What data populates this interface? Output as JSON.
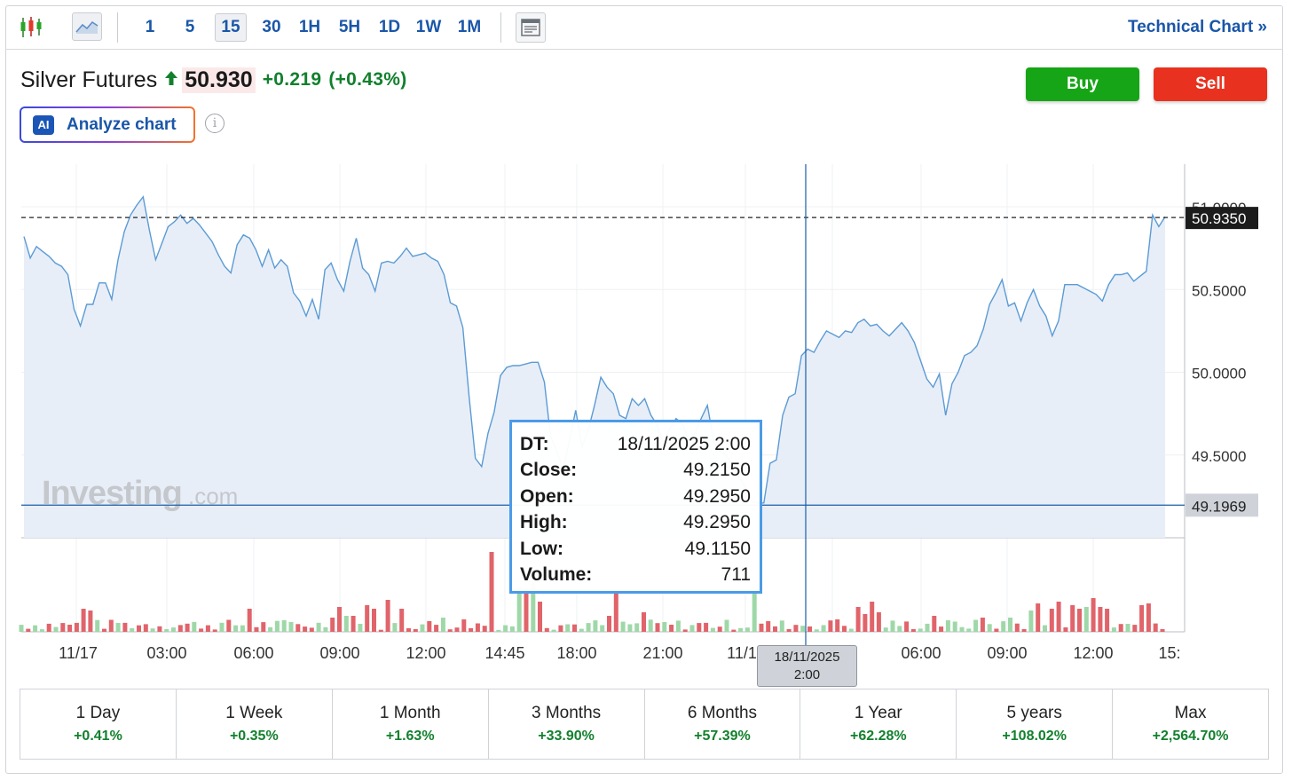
{
  "toolbar": {
    "timeframes": [
      "1",
      "5",
      "15",
      "30",
      "1H",
      "5H",
      "1D",
      "1W",
      "1M"
    ],
    "active_timeframe": "15",
    "technical_link": "Technical Chart »"
  },
  "header": {
    "instrument": "Silver Futures",
    "price": "50.930",
    "change": "+0.219",
    "change_pct": "(+0.43%)",
    "buy_label": "Buy",
    "sell_label": "Sell",
    "analyze_label": "Analyze chart",
    "ai_badge": "AI",
    "info_glyph": "i"
  },
  "chart": {
    "watermark_main": "Investing",
    "watermark_dot": ".com",
    "last_price_label": "50.9350",
    "cursor_price_label": "49.1969",
    "y_ticks": [
      "50.5000",
      "50.0000",
      "49.5000"
    ],
    "top_tick_partial": "51.0000",
    "x_ticks": [
      "11/17",
      "03:00",
      "06:00",
      "09:00",
      "12:00",
      "14:45",
      "18:00",
      "21:00",
      "11/1",
      "06:00",
      "09:00",
      "12:00",
      "15:"
    ],
    "cursor_date": "18/11/2025",
    "cursor_time": "2:00",
    "colors": {
      "line": "#5b9bd5",
      "area": "#e8eef7",
      "up_volume": "#9fd8a8",
      "down_volume": "#e0646a",
      "crosshair": "#1a5ea8"
    }
  },
  "tooltip": {
    "rows": [
      {
        "key": "DT:",
        "value": "18/11/2025 2:00"
      },
      {
        "key": "Close:",
        "value": "49.2150"
      },
      {
        "key": "Open:",
        "value": "49.2950"
      },
      {
        "key": "High:",
        "value": "49.2950"
      },
      {
        "key": "Low:",
        "value": "49.1150"
      },
      {
        "key": "Volume:",
        "value": "711"
      }
    ]
  },
  "periods": [
    {
      "label": "1 Day",
      "value": "+0.41%"
    },
    {
      "label": "1 Week",
      "value": "+0.35%"
    },
    {
      "label": "1 Month",
      "value": "+1.63%"
    },
    {
      "label": "3 Months",
      "value": "+33.90%"
    },
    {
      "label": "6 Months",
      "value": "+57.39%"
    },
    {
      "label": "1 Year",
      "value": "+62.28%"
    },
    {
      "label": "5 years",
      "value": "+108.02%"
    },
    {
      "label": "Max",
      "value": "+2,564.70%"
    }
  ],
  "chart_data": {
    "type": "area",
    "y_range": [
      49.0,
      51.0
    ],
    "close": [
      50.82,
      50.69,
      50.76,
      50.73,
      50.7,
      50.66,
      50.64,
      50.59,
      50.38,
      50.28,
      50.41,
      50.41,
      50.54,
      50.54,
      50.44,
      50.68,
      50.85,
      50.95,
      51.01,
      51.06,
      50.86,
      50.68,
      50.78,
      50.88,
      50.91,
      50.95,
      50.9,
      50.93,
      50.89,
      50.84,
      50.79,
      50.71,
      50.64,
      50.6,
      50.77,
      50.83,
      50.81,
      50.74,
      50.64,
      50.74,
      50.63,
      50.68,
      50.64,
      50.48,
      50.43,
      50.34,
      50.44,
      50.32,
      50.62,
      50.66,
      50.56,
      50.49,
      50.67,
      50.81,
      50.63,
      50.59,
      50.49,
      50.66,
      50.67,
      50.66,
      50.7,
      50.75,
      50.7,
      50.71,
      50.72,
      50.69,
      50.67,
      50.59,
      50.42,
      50.4,
      50.27,
      49.85,
      49.48,
      49.43,
      49.63,
      49.76,
      49.98,
      50.03,
      50.04,
      50.04,
      50.05,
      50.06,
      50.06,
      49.94,
      49.61,
      49.52,
      49.41,
      49.59,
      49.77,
      49.55,
      49.65,
      49.8,
      49.97,
      49.91,
      49.87,
      49.74,
      49.72,
      49.84,
      49.8,
      49.84,
      49.74,
      49.68,
      49.57,
      49.66,
      49.72,
      49.69,
      49.59,
      49.63,
      49.72,
      49.8,
      49.58,
      49.52,
      49.5,
      49.44,
      49.37,
      49.31,
      49.22,
      49.21,
      49.21,
      49.45,
      49.47,
      49.74,
      49.85,
      49.87,
      50.1,
      50.14,
      50.12,
      50.19,
      50.25,
      50.23,
      50.21,
      50.25,
      50.24,
      50.3,
      50.32,
      50.28,
      50.29,
      50.25,
      50.22,
      50.26,
      50.3,
      50.25,
      50.18,
      50.07,
      49.96,
      49.91,
      49.99,
      49.74,
      49.93,
      50.0,
      50.1,
      50.12,
      50.16,
      50.26,
      50.41,
      50.48,
      50.56,
      50.4,
      50.42,
      50.31,
      50.42,
      50.5,
      50.4,
      50.34,
      50.22,
      50.31,
      50.53,
      50.53,
      50.53,
      50.51,
      50.49,
      50.47,
      50.43,
      50.53,
      50.59,
      50.59,
      50.6,
      50.55,
      50.58,
      50.61,
      50.95,
      50.88,
      50.94
    ]
  }
}
